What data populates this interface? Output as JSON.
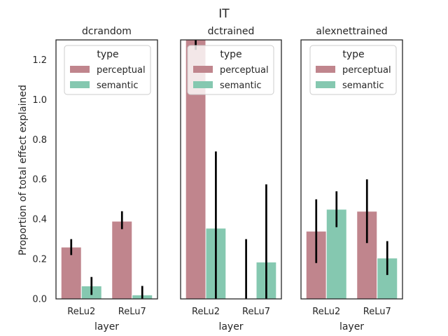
{
  "chart_data": {
    "type": "bar",
    "suptitle": "IT",
    "ylabel": "Proportion of total effect explained",
    "ylim": [
      0,
      1.3
    ],
    "yticks": [
      "0.0",
      "0.2",
      "0.4",
      "0.6",
      "0.8",
      "1.0",
      "1.2"
    ],
    "categories": [
      "ReLu2",
      "ReLu7"
    ],
    "legend": {
      "title": "type",
      "placement": "top",
      "entries": [
        "perceptual",
        "semantic"
      ]
    },
    "colors": {
      "perceptual": "#c0858d",
      "semantic": "#85c8b0"
    },
    "panels": [
      {
        "title": "dcrandom",
        "xlabel": "layer",
        "series": [
          {
            "name": "perceptual",
            "values": [
              0.26,
              0.39
            ],
            "err_low": [
              0.22,
              0.35
            ],
            "err_high": [
              0.3,
              0.44
            ]
          },
          {
            "name": "semantic",
            "values": [
              0.065,
              0.02
            ],
            "err_low": [
              0.02,
              0.0
            ],
            "err_high": [
              0.11,
              0.065
            ]
          }
        ]
      },
      {
        "title": "dctrained",
        "xlabel": "layer",
        "series": [
          {
            "name": "perceptual",
            "values": [
              1.33,
              0.0
            ],
            "err_low": [
              1.25,
              0.0
            ],
            "err_high": [
              1.4,
              0.3
            ]
          },
          {
            "name": "semantic",
            "values": [
              0.355,
              0.185
            ],
            "err_low": [
              0.0,
              0.0
            ],
            "err_high": [
              0.74,
              0.575
            ]
          }
        ]
      },
      {
        "title": "alexnettrained",
        "xlabel": "layer",
        "series": [
          {
            "name": "perceptual",
            "values": [
              0.34,
              0.44
            ],
            "err_low": [
              0.18,
              0.28
            ],
            "err_high": [
              0.5,
              0.6
            ]
          },
          {
            "name": "semantic",
            "values": [
              0.45,
              0.205
            ],
            "err_low": [
              0.36,
              0.12
            ],
            "err_high": [
              0.54,
              0.29
            ]
          }
        ]
      }
    ]
  }
}
